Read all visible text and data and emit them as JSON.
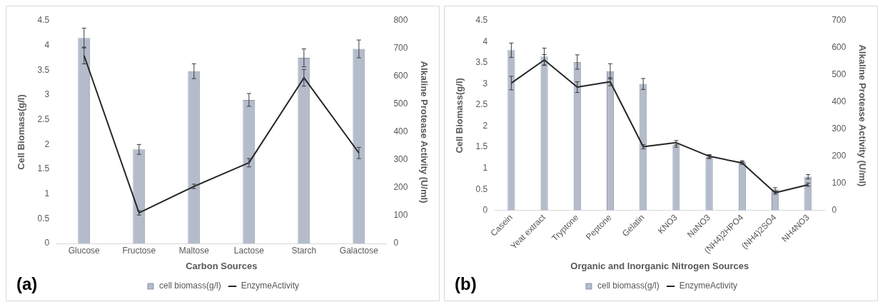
{
  "chart_data": [
    {
      "type": "bar",
      "xlabel": "Carbon Sources",
      "ylabel": "Cell Biomass(g/l)",
      "y2label": "Alkaline Protease Activity (U/ml)",
      "annotations": [
        "(a)"
      ],
      "categories": [
        "Glucose",
        "Fructose",
        "Maltose",
        "Lactose",
        "Starch",
        "Galactose"
      ],
      "series": [
        {
          "name": "cell biomass(g/l)",
          "color": "#b4bccb",
          "values": [
            4.15,
            1.9,
            3.48,
            2.9,
            3.75,
            3.93
          ],
          "errors": [
            0.2,
            0.1,
            0.15,
            0.13,
            0.18,
            0.18
          ]
        },
        {
          "name": "EnzymeActivity",
          "type": "line",
          "axis": "y2",
          "color": "#262626",
          "values": [
            675,
            110,
            205,
            290,
            595,
            325
          ],
          "errors": [
            30,
            8,
            8,
            15,
            30,
            20
          ]
        }
      ],
      "ylim": [
        0,
        4.5
      ],
      "yticks": [
        0,
        0.5,
        1,
        1.5,
        2,
        2.5,
        3,
        3.5,
        4,
        4.5
      ],
      "y2lim": [
        0,
        800
      ],
      "y2ticks": [
        0,
        100,
        200,
        300,
        400,
        500,
        600,
        700,
        800
      ],
      "grid": false,
      "legend": "bottom"
    },
    {
      "type": "bar",
      "xlabel": "Organic and Inorganic Nitrogen Sources",
      "ylabel": "Cell Biomass(g/l)",
      "y2label": "Alkaline Protease Activity (U/ml)",
      "annotations": [
        "(b)"
      ],
      "categories": [
        "Casein",
        "Yeat extract",
        "Tryptone",
        "Peptone",
        "Gelatin",
        "KNO3",
        "NaNO3",
        "(NH4)2HPO4",
        "(NH4)2SO4",
        "NH4NO3"
      ],
      "series": [
        {
          "name": "cell biomass(g/l)",
          "color": "#b4bccb",
          "values": [
            3.8,
            3.65,
            3.52,
            3.3,
            3.0,
            1.55,
            1.27,
            1.15,
            0.5,
            0.8
          ],
          "errors": [
            0.17,
            0.2,
            0.17,
            0.18,
            0.13,
            0.05,
            0.04,
            0.03,
            0.04,
            0.05
          ]
        },
        {
          "name": "EnzymeActivity",
          "type": "line",
          "axis": "y2",
          "color": "#262626",
          "values": [
            470,
            555,
            455,
            475,
            235,
            250,
            200,
            175,
            65,
            95
          ],
          "errors": [
            25,
            20,
            20,
            15,
            8,
            8,
            6,
            5,
            5,
            6
          ]
        }
      ],
      "ylim": [
        0,
        4.5
      ],
      "yticks": [
        0,
        0.5,
        1,
        1.5,
        2,
        2.5,
        3,
        3.5,
        4,
        4.5
      ],
      "y2lim": [
        0,
        700
      ],
      "y2ticks": [
        0,
        100,
        200,
        300,
        400,
        500,
        600,
        700
      ],
      "grid": false,
      "legend": "bottom"
    }
  ]
}
